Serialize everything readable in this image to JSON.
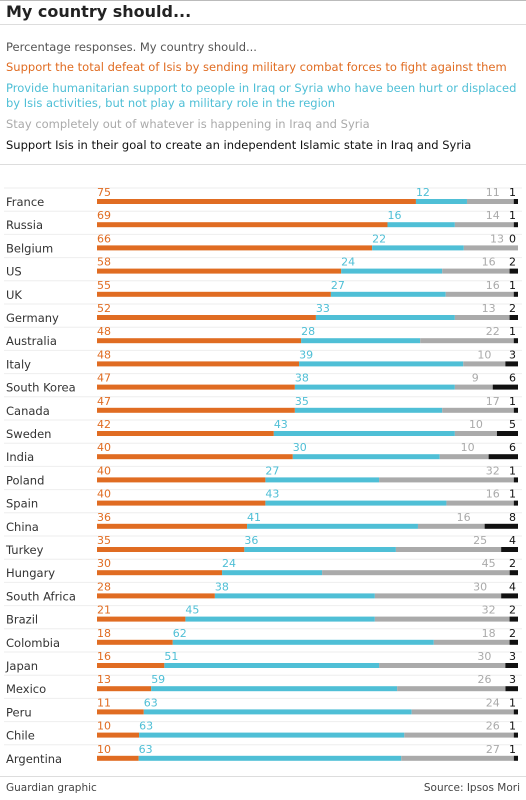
{
  "title": "My country should...",
  "subtitle": "Percentage responses. My country should...",
  "colors": {
    "support_defeat": "#e06c22",
    "humanitarian": "#4fbfd6",
    "stay_out": "#aaaaaa",
    "support_isis": "#111111"
  },
  "legend": [
    {
      "key": "support_defeat",
      "text": "Support the total defeat of Isis by sending military combat forces to fight against them"
    },
    {
      "key": "humanitarian",
      "text": "Provide humanitarian support to people in Iraq or Syria who have been hurt or displaced by Isis activities, but not play a military role in the region"
    },
    {
      "key": "stay_out",
      "text": "Stay completely out of whatever is happening in Iraq and Syria"
    },
    {
      "key": "support_isis",
      "text": "Support Isis in their goal to create an independent Islamic state in Iraq and Syria"
    }
  ],
  "chart_data": {
    "type": "bar",
    "stacked": true,
    "orientation": "horizontal",
    "categories": [
      "France",
      "Russia",
      "Belgium",
      "US",
      "UK",
      "Germany",
      "Australia",
      "Italy",
      "South Korea",
      "Canada",
      "Sweden",
      "India",
      "Poland",
      "Spain",
      "China",
      "Turkey",
      "Hungary",
      "South Africa",
      "Brazil",
      "Colombia",
      "Japan",
      "Mexico",
      "Peru",
      "Chile",
      "Argentina"
    ],
    "series": [
      {
        "name": "Support the total defeat of Isis by sending military combat forces to fight against them",
        "values": [
          75,
          69,
          66,
          58,
          55,
          52,
          48,
          48,
          47,
          47,
          42,
          40,
          40,
          40,
          36,
          35,
          30,
          28,
          21,
          18,
          16,
          13,
          11,
          10,
          10
        ]
      },
      {
        "name": "Provide humanitarian support to people in Iraq or Syria who have been hurt or displaced by Isis activities, but not play a military role in the region",
        "values": [
          12,
          16,
          22,
          24,
          27,
          33,
          28,
          39,
          38,
          35,
          43,
          30,
          27,
          43,
          41,
          36,
          24,
          38,
          45,
          62,
          51,
          59,
          63,
          63,
          63
        ]
      },
      {
        "name": "Stay completely out of whatever is happening in Iraq and Syria",
        "values": [
          11,
          14,
          13,
          16,
          16,
          13,
          22,
          10,
          9,
          17,
          10,
          10,
          32,
          16,
          16,
          25,
          45,
          30,
          32,
          18,
          30,
          26,
          24,
          26,
          27
        ]
      },
      {
        "name": "Support Isis in their goal to create an independent Islamic state in Iraq and Syria",
        "values": [
          1,
          1,
          0,
          2,
          1,
          2,
          1,
          3,
          6,
          1,
          5,
          6,
          1,
          1,
          8,
          4,
          2,
          4,
          2,
          2,
          3,
          3,
          1,
          1,
          1
        ]
      }
    ],
    "xlim": [
      0,
      100
    ]
  },
  "footer": {
    "left": "Guardian graphic",
    "right": "Source: Ipsos Mori"
  }
}
